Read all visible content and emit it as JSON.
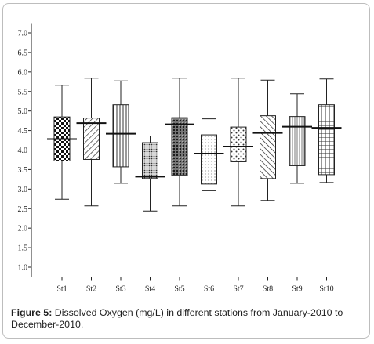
{
  "chart_data": {
    "type": "boxplot",
    "title": "",
    "xlabel": "",
    "ylabel": "",
    "ylim": [
      0.75,
      7.25
    ],
    "yticks": [
      "1.0",
      "1.5",
      "2.0",
      "2.5",
      "3.0",
      "3.5",
      "4.0",
      "4.5",
      "5.0",
      "5.5",
      "6.0",
      "6.5",
      "7.0"
    ],
    "categories": [
      "St1",
      "St2",
      "St3",
      "St4",
      "St5",
      "St6",
      "St7",
      "St8",
      "St9",
      "St10"
    ],
    "series": [
      {
        "min": 2.74,
        "q1": 3.72,
        "median": 4.28,
        "q3": 4.85,
        "max": 5.66,
        "pattern": "checker"
      },
      {
        "min": 2.57,
        "q1": 3.76,
        "median": 4.69,
        "q3": 4.82,
        "max": 5.84,
        "pattern": "diagonal"
      },
      {
        "min": 3.15,
        "q1": 3.57,
        "median": 4.42,
        "q3": 5.16,
        "max": 5.77,
        "pattern": "vertical"
      },
      {
        "min": 2.44,
        "q1": 3.27,
        "median": 3.32,
        "q3": 4.19,
        "max": 4.36,
        "pattern": "dense-dots"
      },
      {
        "min": 2.57,
        "q1": 3.35,
        "median": 4.66,
        "q3": 4.83,
        "max": 5.84,
        "pattern": "dots"
      },
      {
        "min": 2.96,
        "q1": 3.13,
        "median": 3.91,
        "q3": 4.39,
        "max": 4.8,
        "pattern": "fine-dots"
      },
      {
        "min": 2.57,
        "q1": 3.7,
        "median": 4.09,
        "q3": 4.59,
        "max": 5.84,
        "pattern": "crosses"
      },
      {
        "min": 2.71,
        "q1": 3.27,
        "median": 4.44,
        "q3": 4.88,
        "max": 5.79,
        "pattern": "diagonal-wide"
      },
      {
        "min": 3.15,
        "q1": 3.6,
        "median": 4.6,
        "q3": 4.86,
        "max": 5.44,
        "pattern": "vertical-fine"
      },
      {
        "min": 3.17,
        "q1": 3.37,
        "median": 4.57,
        "q3": 5.16,
        "max": 5.82,
        "pattern": "grid"
      }
    ]
  },
  "caption": {
    "label": "Figure 5:",
    "text": " Dissolved Oxygen (mg/L) in different stations from January-2010 to December-2010."
  }
}
